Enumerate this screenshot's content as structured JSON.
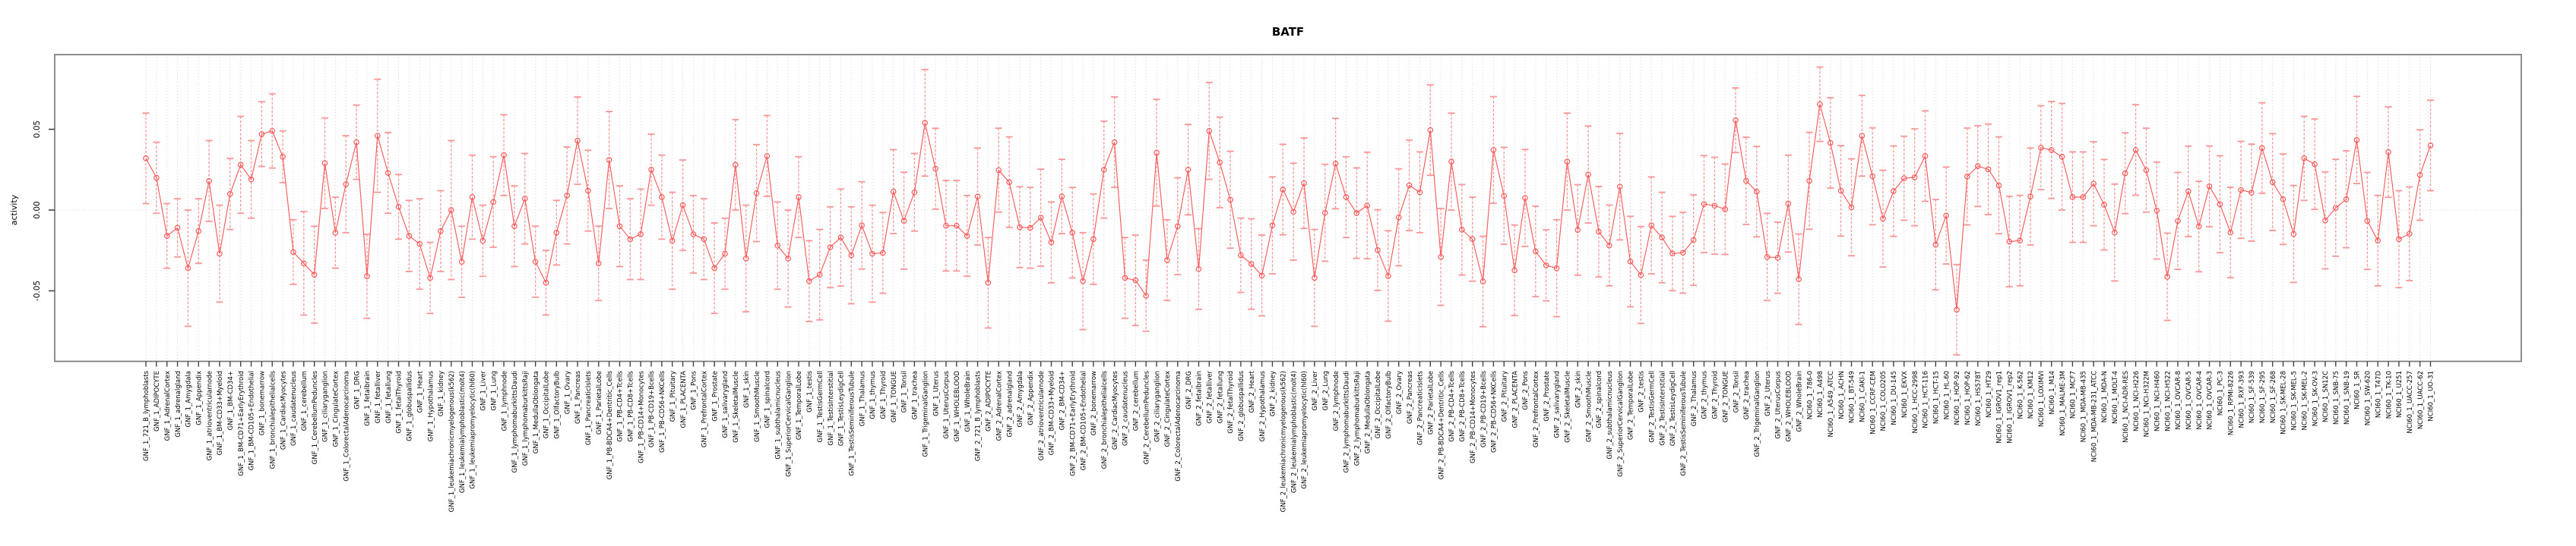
{
  "chart_data": {
    "type": "line",
    "title": "BATF",
    "xlabel": "",
    "ylabel": "activity",
    "ytick_labels": [
      "0.05",
      "0.00",
      "-0.05"
    ],
    "yticks": [
      0.05,
      0.0,
      -0.05
    ],
    "ylim": [
      -0.094,
      0.096
    ],
    "legend": "none",
    "grid": "dotted vertical gridline per category; dotted horizontal line at y=0",
    "marker": "open-circle",
    "error_bars": true,
    "series_color": "#f85c5c",
    "errorbar_color": "#fa9595",
    "gridline_color": "#d9d9d9",
    "box_color": "#7a7a7a",
    "categories": [
      "GNF_1_721_B_lymphoblasts",
      "GNF_1_ADIPOCYTE",
      "GNF_1_AdrenalCortex",
      "GNF_1_adrenalgland",
      "GNF_1_Amygdala",
      "GNF_1_Appendix",
      "GNF_1_atrioventricularnode",
      "GNF_1_BM-CD33+Myeloid",
      "GNF_1_BM-CD34+",
      "GNF_1_BM-CD71+EarlyErythroid",
      "GNF_1_BM-CD105+Endothelial",
      "GNF_1_bonemarrow",
      "GNF_1_bronchialepithelialcells",
      "GNF_1_CardiacMyocytes",
      "GNF_1_caudatenucleus",
      "GNF_1_cerebellum",
      "GNF_1_CerebellumPeduncles",
      "GNF_1_ciliaryganglion",
      "GNF_1_CingulateCortex",
      "GNF_1_ColorectalAdenocarcinoma",
      "GNF_1_DRG",
      "GNF_1_fetalbrain",
      "GNF_1_fetalliver",
      "GNF_1_fetallung",
      "GNF_1_fetalThyroid",
      "GNF_1_globuspallidus",
      "GNF_1_Heart",
      "GNF_1_Hypothalamus",
      "GNF_1_kidney",
      "GNF_1_leukemiachronicmyelogenous(k562)",
      "GNF_1_leukemialymphoblastic(molt4)",
      "GNF_1_leukemiapromyelocytic(hl60)",
      "GNF_1_Liver",
      "GNF_1_Lung",
      "GNF_1_lymphnode",
      "GNF_1_lymphomaburkittsDaudi",
      "GNF_1_lymphomaburkittsRaji",
      "GNF_1_MedullaOblongata",
      "GNF_1_OccipitalLobe",
      "GNF_1_OlfactoryBulb",
      "GNF_1_Ovary",
      "GNF_1_Pancreas",
      "GNF_1_PancreaticIslets",
      "GNF_1_ParietalLobe",
      "GNF_1_PB-BDCA4+Dentritic_Cells",
      "GNF_1_PB-CD4+Tcells",
      "GNF_1_PB-CD8+Tcells",
      "GNF_1_PB-CD14+Monocytes",
      "GNF_1_PB-CD19+Bcells",
      "GNF_1_PB-CD56+NKCells",
      "GNF_1_Pituitary",
      "GNF_1_PLACENTA",
      "GNF_1_Pons",
      "GNF_1_PrefrontalCortex",
      "GNF_1_Prostate",
      "GNF_1_salivarygland",
      "GNF_1_SkeletalMuscle",
      "GNF_1_skin",
      "GNF_1_SmoothMuscle",
      "GNF_1_spinalcord",
      "GNF_1_subthalamicnucleus",
      "GNF_1_SuperiorCervicalGanglion",
      "GNF_1_TemporalLobe",
      "GNF_1_testis",
      "GNF_1_TestisGermCell",
      "GNF_1_TestisInterstitial",
      "GNF_1_TestisLeydigCell",
      "GNF_1_TestisSeminiferousTubule",
      "GNF_1_Thalamus",
      "GNF_1_thymus",
      "GNF_1_Thyroid",
      "GNF_1_TONGUE",
      "GNF_1_Tonsil",
      "GNF_1_trachea",
      "GNF_1_TrigeminalGanglion",
      "GNF_1_Uterus",
      "GNF_1_UterusCorpus",
      "GNF_1_WHOLEBLOOD",
      "GNF_1_WholeBrain",
      "GNF_2_721_B_lymphoblasts",
      "GNF_2_ADIPOCYTE",
      "GNF_2_AdrenalCortex",
      "GNF_2_adrenalgland",
      "GNF_2_Amygdala",
      "GNF_2_Appendix",
      "GNF_2_atrioventricularnode",
      "GNF_2_BM-CD33+Myeloid",
      "GNF_2_BM-CD34+",
      "GNF_2_BM-CD71+EarlyErythroid",
      "GNF_2_BM-CD105+Endothelial",
      "GNF_2_bonemarrow",
      "GNF_2_bronchialepithelialcells",
      "GNF_2_CardiacMyocytes",
      "GNF_2_caudatenucleus",
      "GNF_2_cerebellum",
      "GNF_2_CerebellumPeduncles",
      "GNF_2_ciliaryganglion",
      "GNF_2_CingulateCortex",
      "GNF_2_ColorectalAdenocarcinoma",
      "GNF_2_DRG",
      "GNF_2_fetalbrain",
      "GNF_2_fetalliver",
      "GNF_2_fetallung",
      "GNF_2_fetalThyroid",
      "GNF_2_globuspallidus",
      "GNF_2_Heart",
      "GNF_2_Hypothalamus",
      "GNF_2_kidney",
      "GNF_2_leukemiachronicmyelogenous(k562)",
      "GNF_2_leukemialymphoblastic(molt4)",
      "GNF_2_leukemiapromyelocytic(hl60)",
      "GNF_2_Liver",
      "GNF_2_Lung",
      "GNF_2_lymphnode",
      "GNF_2_lymphomaburkittsDaudi",
      "GNF_2_lymphomaburkittsRaji",
      "GNF_2_MedullaOblongata",
      "GNF_2_OccipitalLobe",
      "GNF_2_OlfactoryBulb",
      "GNF_2_Ovary",
      "GNF_2_Pancreas",
      "GNF_2_PancreaticIslets",
      "GNF_2_ParietalLobe",
      "GNF_2_PB-BDCA4+Dentritic_Cells",
      "GNF_2_PB-CD4+Tcells",
      "GNF_2_PB-CD8+Tcells",
      "GNF_2_PB-CD14+Monocytes",
      "GNF_2_PB-CD19+Bcells",
      "GNF_2_PB-CD56+NKCells",
      "GNF_2_Pituitary",
      "GNF_2_PLACENTA",
      "GNF_2_Pons",
      "GNF_2_PrefrontalCortex",
      "GNF_2_Prostate",
      "GNF_2_salivarygland",
      "GNF_2_SkeletalMuscle",
      "GNF_2_skin",
      "GNF_2_SmoothMuscle",
      "GNF_2_spinalcord",
      "GNF_2_subthalamicnucleus",
      "GNF_2_SuperiorCervicalGanglion",
      "GNF_2_TemporalLobe",
      "GNF_2_testis",
      "GNF_2_TestisGermCell",
      "GNF_2_TestisInterstitial",
      "GNF_2_TestisLeydigCell",
      "GNF_2_TestisSeminiferousTubule",
      "GNF_2_Thalamus",
      "GNF_2_thymus",
      "GNF_2_Thyroid",
      "GNF_2_TONGUE",
      "GNF_2_Tonsil",
      "GNF_2_trachea",
      "GNF_2_TrigeminalGanglion",
      "GNF_2_Uterus",
      "GNF_2_UterusCorpus",
      "GNF_2_WHOLEBLOOD",
      "GNF_2_WholeBrain",
      "NCI60_1_786-0",
      "NCI60_1_A498",
      "NCI60_1_A549_ATCC",
      "NCI60_1_ACHN",
      "NCI60_1_BT-549",
      "NCI60_1_CAKI-1",
      "NCI60_1_CCRF-CEM",
      "NCI60_1_COLO205",
      "NCI60_1_DU-145",
      "NCI60_1_EKVX",
      "NCI60_1_HCC-2998",
      "NCI60_1_HCT-116",
      "NCI60_1_HCT-15",
      "NCI60_1_HL-60",
      "NCI60_1_HOP-92",
      "NCI60_1_HOP-62",
      "NCI60_1_HS578T",
      "NCI60_1_HT29",
      "NCI60_1_IGROV1_rep1",
      "NCI60_1_IGROV1_rep2",
      "NCI60_1_K-562",
      "NCI60_1_KM12",
      "NCI60_1_LOXIMVI",
      "NCI60_1_M14",
      "NCI60_1_MALME-3M",
      "NCI60_1_MCF7",
      "NCI60_1_MDA-MB-435",
      "NCI60_1_MDA-MB-231_ATCC",
      "NCI60_1_MDA-N",
      "NCI60_1_MOLT-4",
      "NCI60_1_NCI-ADR-RES",
      "NCI60_1_NCI-H226",
      "NCI60_1_NCI-H322M",
      "NCI60_1_NCI-H460",
      "NCI60_1_NCI-H522",
      "NCI60_1_OVCAR-8",
      "NCI60_1_OVCAR-5",
      "NCI60_1_OVCAR-4",
      "NCI60_1_OVCAR-3",
      "NCI60_1_PC-3",
      "NCI60_1_RPMI-8226",
      "NCI60_1_RXF-393",
      "NCI60_1_SF-539",
      "NCI60_1_SF-295",
      "NCI60_1_SF-268",
      "NCI60_1_SK-MEL-28",
      "NCI60_1_SK-MEL-5",
      "NCI60_1_SK-MEL-2",
      "NCI60_1_SK-OV-3",
      "NCI60_1_SN12C",
      "NCI60_1_SNB-75",
      "NCI60_1_SNB-19",
      "NCI60_1_SR",
      "NCI60_1_SW-620",
      "NCI60_1_T47D",
      "NCI60_1_TK-10",
      "NCI60_1_U251",
      "NCI60_1_UACC-257",
      "NCI60_1_UACC-62",
      "NCI60_1_UO-31"
    ],
    "values": [
      0.032,
      0.02,
      -0.016,
      -0.011,
      -0.036,
      -0.013,
      0.018,
      -0.027,
      0.01,
      0.028,
      0.019,
      0.047,
      0.049,
      0.033,
      -0.026,
      -0.033,
      -0.04,
      0.029,
      -0.014,
      0.016,
      0.042,
      -0.041,
      0.046,
      0.023,
      0.002,
      -0.016,
      -0.021,
      -0.042,
      -0.013,
      0.0,
      -0.032,
      0.008,
      -0.019,
      0.005,
      0.034,
      -0.01,
      0.007,
      -0.032,
      -0.045,
      -0.014,
      0.009,
      0.043,
      0.012,
      -0.033,
      0.031,
      -0.01,
      -0.018,
      -0.015,
      0.025,
      0.008,
      -0.019,
      0.003,
      -0.015,
      -0.018,
      -0.036,
      -0.027,
      0.028,
      -0.03,
      0.0105,
      0.0335,
      -0.022,
      -0.03,
      0.008,
      -0.044,
      -0.04,
      -0.023,
      -0.017,
      -0.028,
      -0.0095,
      -0.027,
      -0.0265,
      0.0114,
      -0.0066,
      0.011,
      0.054,
      0.0256,
      -0.0097,
      -0.0097,
      -0.016,
      0.0084,
      -0.045,
      0.0247,
      0.0173,
      -0.0106,
      -0.011,
      -0.0047,
      -0.02,
      0.0084,
      -0.014,
      -0.044,
      -0.018,
      0.025,
      0.042,
      -0.042,
      -0.0435,
      -0.053,
      0.0355,
      -0.031,
      -0.01,
      0.025,
      -0.0365,
      0.049,
      0.0295,
      0.0064,
      -0.028,
      -0.0334,
      -0.0405,
      -0.0095,
      0.0127,
      -0.001,
      0.0166,
      -0.042,
      -0.0017,
      0.0288,
      0.008,
      -0.0019,
      0.0028,
      -0.0248,
      -0.0408,
      -0.0045,
      0.0153,
      0.011,
      0.0495,
      -0.029,
      0.03,
      -0.0122,
      -0.018,
      -0.0442,
      0.0372,
      0.0088,
      -0.0373,
      0.0075,
      -0.0256,
      -0.0342,
      -0.036,
      0.03,
      -0.0123,
      0.022,
      -0.0134,
      -0.0219,
      0.0145,
      -0.0319,
      -0.0402,
      -0.0095,
      -0.017,
      -0.0269,
      -0.0264,
      -0.0186,
      0.0037,
      0.0027,
      0.0005,
      0.0556,
      0.0181,
      0.0114,
      -0.029,
      -0.0295,
      0.004,
      -0.0428,
      0.0181,
      0.0655,
      0.0416,
      0.0119,
      0.0017,
      0.046,
      0.0209,
      -0.0053,
      0.0117,
      0.0197,
      0.0203,
      0.0334,
      -0.0214,
      -0.0034,
      -0.0617,
      0.0208,
      0.0272,
      0.0252,
      0.0153,
      -0.0195,
      -0.0189,
      0.0084,
      0.0386,
      0.0372,
      0.033,
      0.008,
      0.008,
      0.0163,
      0.0033,
      -0.0139,
      0.0228,
      0.0372,
      0.0247,
      -0.0003,
      -0.0413,
      -0.0067,
      0.0116,
      -0.0102,
      0.0147,
      0.0036,
      -0.0139,
      0.0125,
      0.0108,
      0.0384,
      0.0173,
      0.0067,
      -0.0148,
      0.032,
      0.0284,
      -0.0064,
      0.0014,
      0.0067,
      0.0434,
      -0.0067,
      -0.0189,
      0.0359,
      -0.018,
      -0.0147,
      0.0217,
      0.04
    ],
    "se": [
      0.028,
      0.022,
      0.02,
      0.018,
      0.036,
      0.02,
      0.025,
      0.03,
      0.022,
      0.03,
      0.024,
      0.02,
      0.023,
      0.016,
      0.02,
      0.032,
      0.03,
      0.028,
      0.022,
      0.03,
      0.023,
      0.026,
      0.035,
      0.025,
      0.02,
      0.022,
      0.028,
      0.022,
      0.025,
      0.043,
      0.022,
      0.026,
      0.022,
      0.028,
      0.025,
      0.025,
      0.028,
      0.022,
      0.02,
      0.02,
      0.03,
      0.027,
      0.025,
      0.023,
      0.03,
      0.025,
      0.025,
      0.028,
      0.022,
      0.026,
      0.03,
      0.028,
      0.024,
      0.025,
      0.028,
      0.022,
      0.028,
      0.033,
      0.03,
      0.025,
      0.027,
      0.03,
      0.025,
      0.025,
      0.028,
      0.025,
      0.03,
      0.03,
      0.027,
      0.03,
      0.025,
      0.026,
      0.03,
      0.024,
      0.033,
      0.025,
      0.028,
      0.028,
      0.025,
      0.03,
      0.028,
      0.026,
      0.028,
      0.025,
      0.025,
      0.03,
      0.025,
      0.023,
      0.028,
      0.03,
      0.028,
      0.03,
      0.028,
      0.025,
      0.028,
      0.022,
      0.033,
      0.025,
      0.03,
      0.028,
      0.025,
      0.03,
      0.028,
      0.03,
      0.023,
      0.028,
      0.025,
      0.03,
      0.028,
      0.03,
      0.028,
      0.03,
      0.03,
      0.028,
      0.025,
      0.028,
      0.033,
      0.025,
      0.028,
      0.03,
      0.028,
      0.025,
      0.028,
      0.03,
      0.03,
      0.028,
      0.026,
      0.028,
      0.033,
      0.03,
      0.028,
      0.03,
      0.028,
      0.022,
      0.03,
      0.03,
      0.028,
      0.03,
      0.028,
      0.025,
      0.033,
      0.028,
      0.03,
      0.03,
      0.028,
      0.023,
      0.025,
      0.028,
      0.03,
      0.03,
      0.028,
      0.02,
      0.027,
      0.028,
      0.027,
      0.022,
      0.03,
      0.028,
      0.03,
      0.023,
      0.028,
      0.028,
      0.03,
      0.025,
      0.03,
      0.03,
      0.028,
      0.026,
      0.03,
      0.028,
      0.028,
      0.03,
      0.028,
      0.03,
      0.025,
      0.028,
      0.03,
      0.028,
      0.028,
      0.03,
      0.026,
      0.03,
      0.033,
      0.028,
      0.028,
      0.026,
      0.028,
      0.03,
      0.025,
      0.028,
      0.026,
      0.03,
      0.027,
      0.03,
      0.028,
      0.028,
      0.025,
      0.03,
      0.028,
      0.03,
      0.03,
      0.028,
      0.03,
      0.028,
      0.03,
      0.026,
      0.028,
      0.03,
      0.03,
      0.03,
      0.027,
      0.03,
      0.028,
      0.028,
      0.03,
      0.029,
      0.028,
      0.028
    ]
  }
}
